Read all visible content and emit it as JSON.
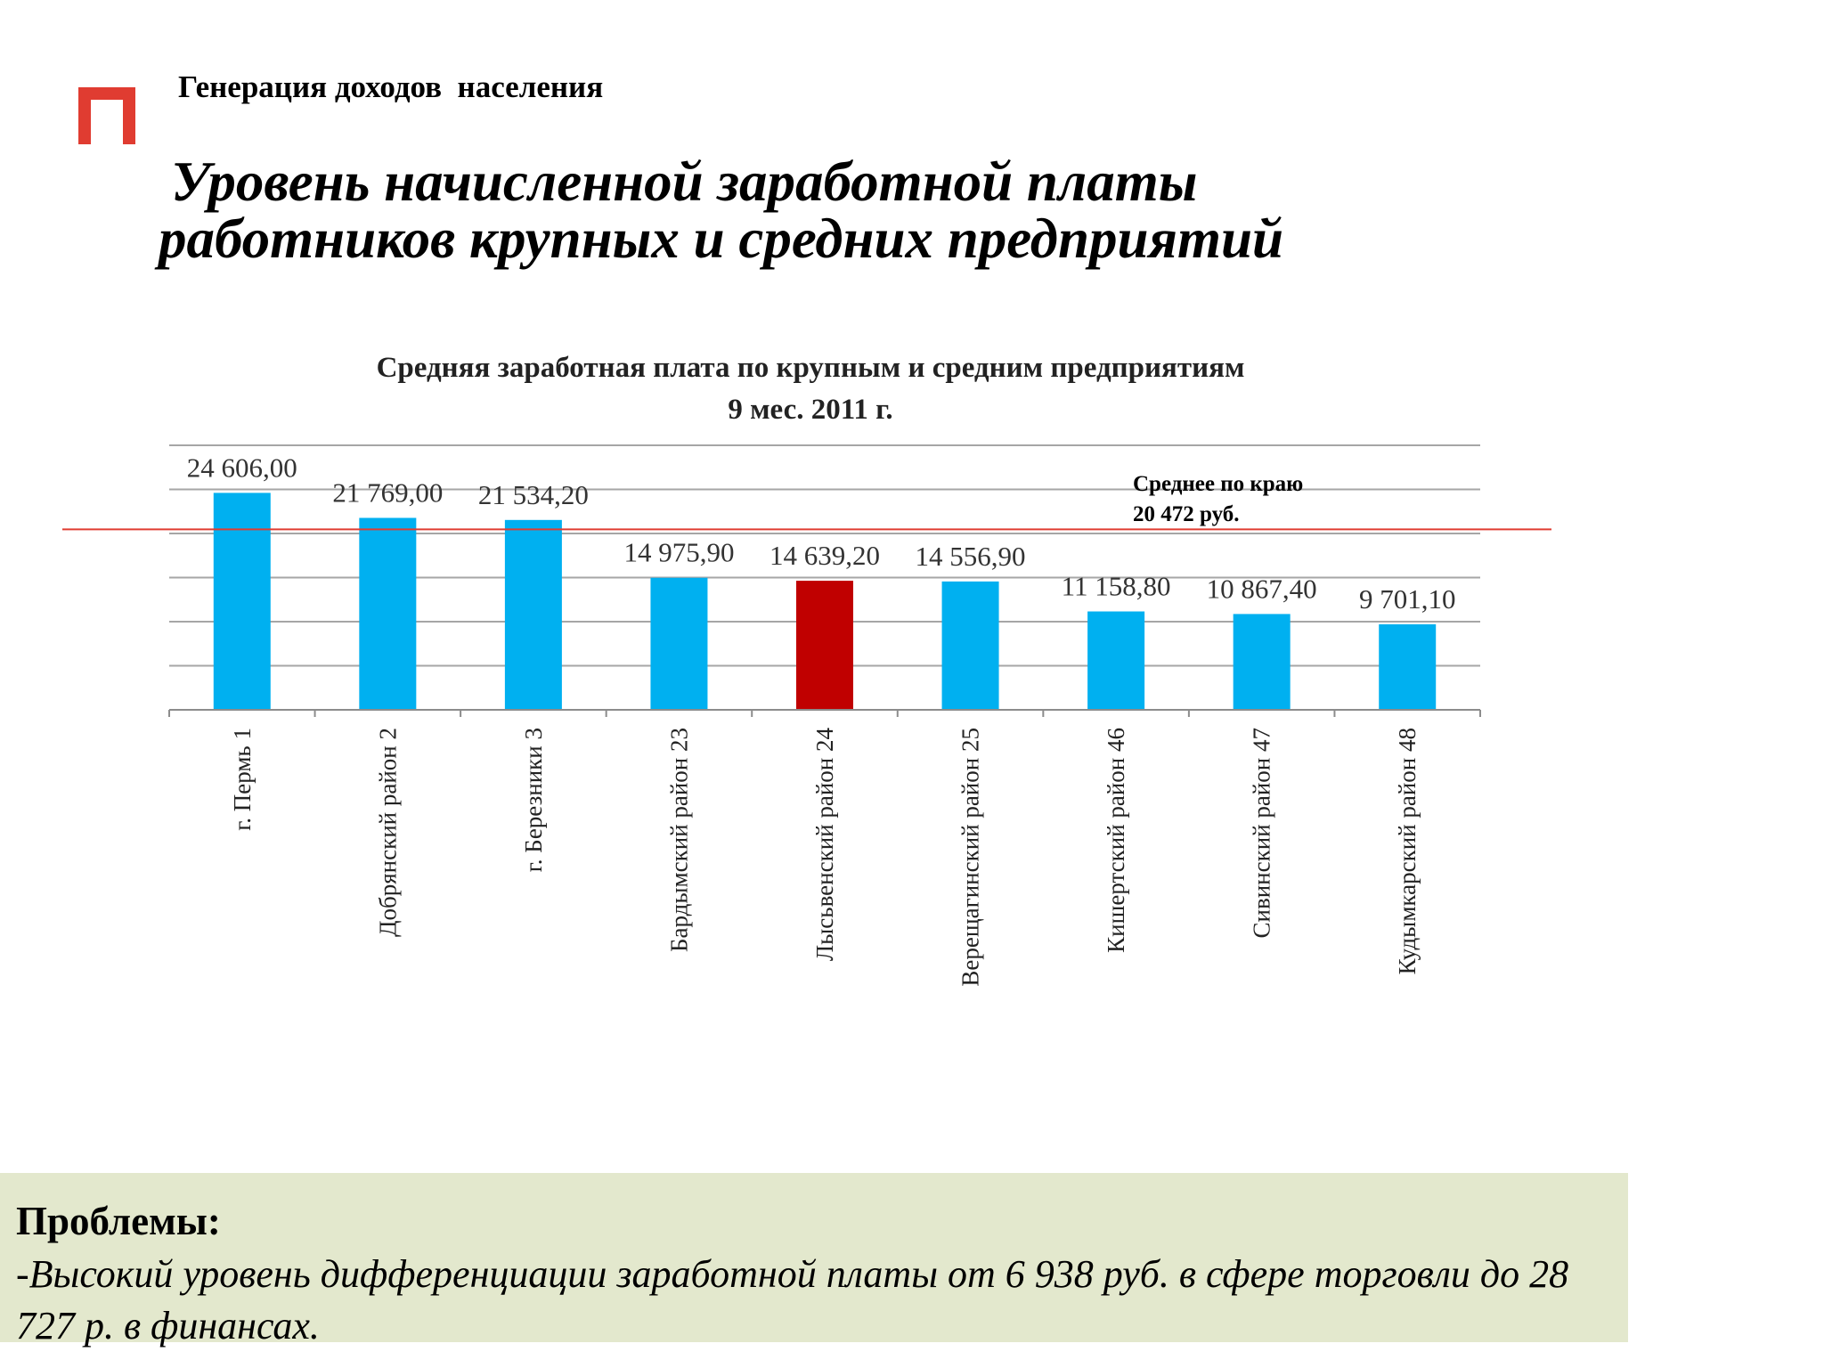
{
  "header": {
    "caption": "Генерация доходов  населения",
    "logo_icon": "red-p-logo-icon",
    "logo_color": "#e03c31"
  },
  "title": {
    "line1": "Уровень начисленной заработной платы",
    "line2": "работников крупных и средних предприятий"
  },
  "chart_data": {
    "type": "bar",
    "title": "Средняя заработная плата по крупным и средним предприятиям",
    "subtitle": "9 мес. 2011 г.",
    "categories": [
      "г. Пермь 1",
      "Добрянский район 2",
      "г. Березники 3",
      "Бардымский район 23",
      "Лысьвенский район 24",
      "Верещагинский район 25",
      "Кишертский район 46",
      "Сивинский район 47",
      "Кудымкарский район 48"
    ],
    "values": [
      24606.0,
      21769.0,
      21534.2,
      14975.9,
      14639.2,
      14556.9,
      11158.8,
      10867.4,
      9701.1
    ],
    "value_labels": [
      "24 606,00",
      "21 769,00",
      "21 534,20",
      "14 975,90",
      "14 639,20",
      "14 556,90",
      "11 158,80",
      "10 867,40",
      "9 701,10"
    ],
    "highlight_index": 4,
    "bar_color": "#00b0f0",
    "highlight_color": "#c00000",
    "reference_line": {
      "value": 20472,
      "label_line1": "Среднее по краю",
      "label_line2": "20 472 руб.",
      "color": "#e03c31"
    },
    "ylim": [
      0,
      30000
    ],
    "gridlines": true,
    "xlabel": "",
    "ylabel": ""
  },
  "problems": {
    "title": "Проблемы:",
    "text": "-Высокий уровень дифференциации заработной платы от 6 938 руб. в сфере торговли до 28 727 р. в финансах."
  }
}
